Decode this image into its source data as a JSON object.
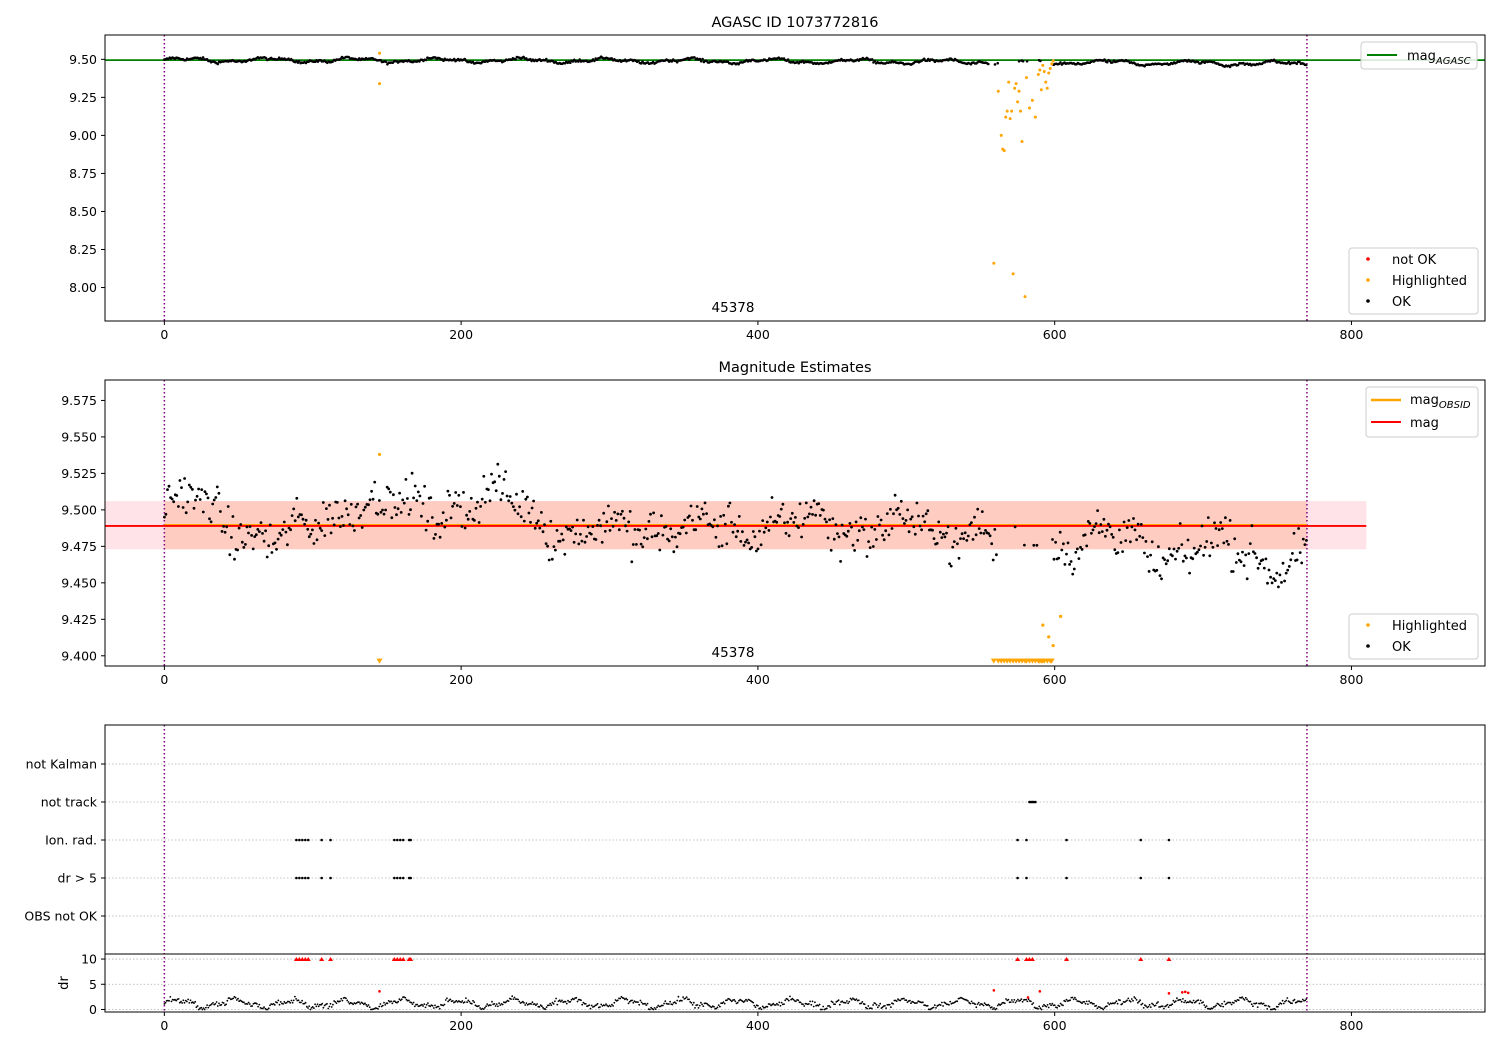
{
  "figure": {
    "panel1": {
      "title": "AGASC ID 1073772816",
      "obsid_label": "45378",
      "legend_line": {
        "label": "mag",
        "subscript": "AGASC",
        "color": "#008000"
      },
      "legend_points": [
        {
          "label": "not OK",
          "color": "#ff0000"
        },
        {
          "label": "Highlighted",
          "color": "#ffa500"
        },
        {
          "label": "OK",
          "color": "#000000"
        }
      ]
    },
    "panel2": {
      "title": "Magnitude Estimates",
      "obsid_label": "45378",
      "legend_lines": [
        {
          "label": "mag",
          "subscript": "OBSID",
          "color": "#ffa500"
        },
        {
          "label": "mag",
          "subscript": "",
          "color": "#ff0000"
        }
      ],
      "legend_points": [
        {
          "label": "Highlighted",
          "color": "#ffa500"
        },
        {
          "label": "OK",
          "color": "#000000"
        }
      ]
    },
    "panel3": {
      "flag_labels": [
        "not Kalman",
        "not track",
        "Ion. rad.",
        "dr > 5",
        "OBS not OK"
      ],
      "dr_ylabel": "dr"
    }
  },
  "chart_data": [
    {
      "type": "scatter",
      "title": "AGASC ID 1073772816",
      "xlim": [
        -40,
        890
      ],
      "ylim": [
        7.78,
        9.66
      ],
      "xticks": [
        0,
        200,
        400,
        600,
        800
      ],
      "yticks": [
        8.0,
        8.25,
        8.5,
        8.75,
        9.0,
        9.25,
        9.5
      ],
      "ytick_labels": [
        "8.00",
        "8.25",
        "8.50",
        "8.75",
        "9.00",
        "9.25",
        "9.50"
      ],
      "hlines": [
        {
          "name": "mag_AGASC",
          "y": 9.495,
          "color": "#008000"
        }
      ],
      "vlines": [
        {
          "x": 0,
          "color": "#800080",
          "style": "dotted"
        },
        {
          "x": 770,
          "color": "#800080",
          "style": "dotted"
        }
      ],
      "annotation": {
        "text": "45378",
        "x": 385
      },
      "ok_baseline": {
        "x_range": [
          0,
          770
        ],
        "level": 9.495,
        "drift_end": 9.465
      },
      "highlighted_points": {
        "x": [
          145,
          145,
          559,
          562,
          564,
          565,
          566,
          567,
          568,
          569,
          570,
          571,
          572,
          573,
          574,
          575,
          576,
          577,
          578,
          580,
          581,
          583,
          585,
          587,
          589,
          590,
          591,
          592,
          593,
          594,
          595,
          596,
          597,
          598,
          599
        ],
        "y": [
          9.54,
          9.34,
          8.16,
          9.29,
          9.0,
          8.91,
          8.9,
          9.12,
          9.16,
          9.35,
          9.11,
          9.16,
          8.09,
          9.31,
          9.34,
          9.22,
          9.29,
          9.16,
          8.96,
          7.94,
          9.38,
          9.18,
          9.23,
          9.12,
          9.4,
          9.43,
          9.3,
          9.46,
          9.42,
          9.35,
          9.31,
          9.41,
          9.44,
          9.47,
          9.49
        ]
      }
    },
    {
      "type": "scatter",
      "title": "Magnitude Estimates",
      "xlim": [
        -40,
        890
      ],
      "ylim": [
        9.393,
        9.589
      ],
      "xticks": [
        0,
        200,
        400,
        600,
        800
      ],
      "yticks": [
        9.4,
        9.425,
        9.45,
        9.475,
        9.5,
        9.525,
        9.55,
        9.575
      ],
      "ytick_labels": [
        "9.400",
        "9.425",
        "9.450",
        "9.475",
        "9.500",
        "9.525",
        "9.550",
        "9.575"
      ],
      "hlines": [
        {
          "name": "mag_OBSID",
          "y": 9.4895,
          "x_range": [
            0,
            770
          ],
          "color": "#ffa500"
        },
        {
          "name": "mag",
          "y": 9.489,
          "x_range": [
            -40,
            810
          ],
          "color": "#ff0000"
        }
      ],
      "bands": [
        {
          "y_range": [
            9.473,
            9.506
          ],
          "x_range": [
            -40,
            810
          ],
          "color": "#ffc0cb"
        },
        {
          "y_range": [
            9.473,
            9.506
          ],
          "x_range": [
            0,
            770
          ],
          "color": "#ffa07a"
        }
      ],
      "vlines": [
        {
          "x": 0,
          "color": "#800080",
          "style": "dotted"
        },
        {
          "x": 770,
          "color": "#800080",
          "style": "dotted"
        }
      ],
      "annotation": {
        "text": "45378",
        "x": 385
      },
      "ok_profile": [
        [
          0,
          9.5
        ],
        [
          20,
          9.505
        ],
        [
          40,
          9.495
        ],
        [
          60,
          9.485
        ],
        [
          80,
          9.475
        ],
        [
          100,
          9.49
        ],
        [
          130,
          9.51
        ],
        [
          145,
          9.5
        ],
        [
          160,
          9.5
        ],
        [
          200,
          9.505
        ],
        [
          240,
          9.505
        ],
        [
          280,
          9.48
        ],
        [
          320,
          9.49
        ],
        [
          360,
          9.485
        ],
        [
          400,
          9.49
        ],
        [
          440,
          9.49
        ],
        [
          480,
          9.49
        ],
        [
          520,
          9.485
        ],
        [
          550,
          9.49
        ],
        [
          560,
          9.475
        ],
        [
          600,
          9.48
        ],
        [
          640,
          9.48
        ],
        [
          680,
          9.47
        ],
        [
          720,
          9.475
        ],
        [
          770,
          9.46
        ]
      ],
      "highlighted_points": {
        "x": [
          145,
          592,
          596,
          599,
          604
        ],
        "y": [
          9.538,
          9.421,
          9.413,
          9.407,
          9.427
        ]
      },
      "highlighted_offscale_markers": {
        "x": [
          145,
          559,
          562,
          564,
          566,
          568,
          570,
          572,
          574,
          576,
          578,
          580,
          581,
          583,
          585,
          587,
          589,
          590,
          591,
          592,
          593,
          595,
          597,
          598
        ],
        "y_at": 9.396
      }
    },
    {
      "type": "scatter",
      "title": "",
      "xlim": [
        -40,
        890
      ],
      "flag_rows": [
        "not Kalman",
        "not track",
        "Ion. rad.",
        "dr > 5",
        "OBS not OK"
      ],
      "flags": {
        "not Kalman": [],
        "not track": [
          583,
          584,
          585,
          586,
          587
        ],
        "Ion. rad.": [
          89,
          91,
          93,
          95,
          97,
          106,
          112,
          155,
          157,
          159,
          161,
          165,
          166,
          575,
          581,
          608,
          658,
          677
        ],
        "dr > 5": [
          89,
          91,
          93,
          95,
          97,
          106,
          112,
          155,
          157,
          159,
          161,
          165,
          166,
          575,
          581,
          608,
          658,
          677
        ],
        "OBS not OK": []
      },
      "dr_panel": {
        "ylabel": "dr",
        "ylim": [
          -0.5,
          11
        ],
        "yticks": [
          0,
          5,
          10
        ],
        "clipped_at": 10,
        "red_clipped_x": [
          89,
          91,
          93,
          95,
          97,
          106,
          112,
          155,
          157,
          159,
          161,
          165,
          166,
          575,
          581,
          583,
          585,
          608,
          658,
          677
        ],
        "red_points": [
          [
            145,
            3.6
          ],
          [
            559,
            3.8
          ],
          [
            582,
            2.4
          ],
          [
            590,
            3.6
          ],
          [
            677,
            3.2
          ],
          [
            686,
            3.4
          ],
          [
            688,
            3.5
          ],
          [
            690,
            3.3
          ]
        ],
        "black_base_level": 1.2
      },
      "vlines": [
        {
          "x": 0,
          "color": "#800080",
          "style": "dotted"
        },
        {
          "x": 770,
          "color": "#800080",
          "style": "dotted"
        }
      ],
      "xticks": [
        0,
        200,
        400,
        600,
        800
      ]
    }
  ]
}
